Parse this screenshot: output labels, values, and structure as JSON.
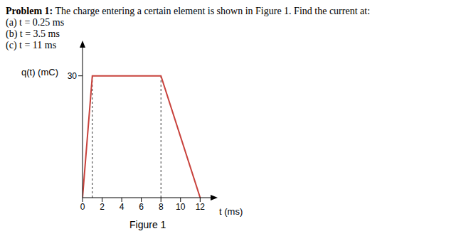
{
  "problem": {
    "label": "Problem 1:",
    "text": "The charge entering a certain element is shown in Figure 1. Find the current at:",
    "items": [
      {
        "label": "(a)",
        "text": "t = 0.25 ms"
      },
      {
        "label": "(b)",
        "text": "t = 3.5 ms"
      },
      {
        "label": "(c)",
        "text": "t = 11 ms"
      }
    ]
  },
  "caption": "Figure 1",
  "chart_data": {
    "type": "line",
    "y_label": "q(t) (mC)",
    "x_label": "t (ms)",
    "x": [
      0,
      1,
      8,
      12
    ],
    "values": [
      0,
      30,
      30,
      0
    ],
    "color": "#c8413b",
    "xlim": [
      0,
      13.5
    ],
    "xticks": [
      0,
      2,
      4,
      6,
      8,
      10,
      12
    ],
    "ylim": [
      0,
      38
    ],
    "yticks": [
      30
    ],
    "guide_lines_x": [
      1,
      8
    ],
    "grid": false
  }
}
